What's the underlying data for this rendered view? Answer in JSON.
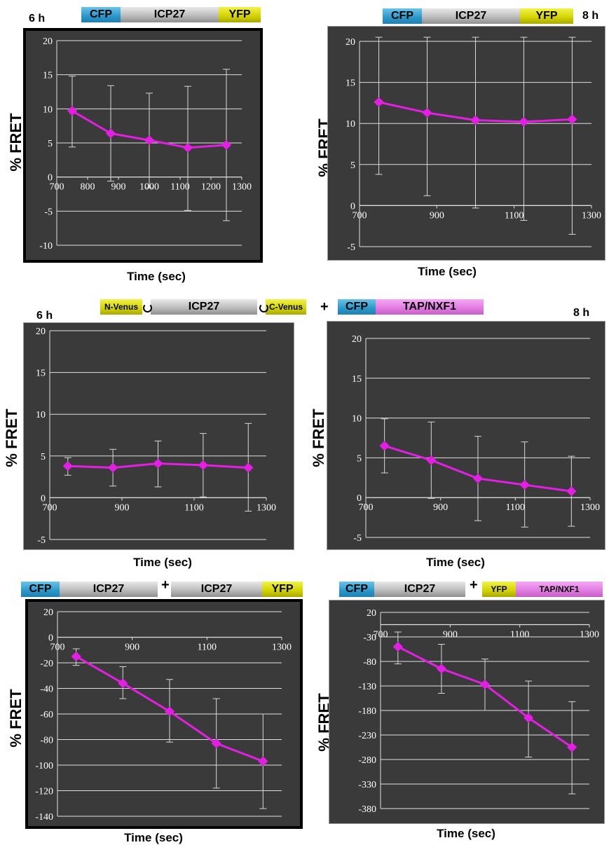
{
  "constructs": {
    "cfp": "CFP",
    "icp27": "ICP27",
    "yfp": "YFP",
    "n_venus": "N-Venus",
    "c_venus": "C-Venus",
    "tap": "TAP/NXF1",
    "plus": "+"
  },
  "colors": {
    "line": "#e21fe2",
    "panel": "#3a3a3a",
    "grid": "#e0e0e0",
    "cfp": "#2a97c9",
    "icp27": "#bdbdbd",
    "yfp": "#d2d200",
    "tap": "#e07ae0"
  },
  "time_labels": {
    "t6": "6 h",
    "t8": "8 h"
  },
  "chart_data": [
    {
      "type": "line",
      "id": "c1",
      "ylabel": "% FRET",
      "xlabel": "Time (sec)",
      "x_ticks": [
        700,
        800,
        900,
        1000,
        1100,
        1200,
        1300
      ],
      "y_ticks": [
        20,
        15,
        10,
        5,
        0,
        -5,
        -10
      ],
      "xlim": [
        700,
        1300
      ],
      "ylim": [
        -10,
        20
      ],
      "x_axis_at": 0,
      "grid": true,
      "series": [
        {
          "x": [
            750,
            875,
            1000,
            1125,
            1250
          ],
          "y": [
            9.7,
            6.4,
            5.4,
            4.3,
            4.7
          ],
          "err_low": [
            4.4,
            -0.6,
            -1.6,
            -4.9,
            -6.4
          ],
          "err_high": [
            14.8,
            13.4,
            12.3,
            13.3,
            15.8
          ]
        }
      ]
    },
    {
      "type": "line",
      "id": "c2",
      "ylabel": "% FRET",
      "xlabel": "Time (sec)",
      "x_ticks": [
        700,
        900,
        1100,
        1300
      ],
      "y_ticks": [
        20,
        15,
        10,
        5,
        0,
        -5
      ],
      "xlim": [
        700,
        1300
      ],
      "ylim": [
        -5,
        20
      ],
      "x_axis_at": 0,
      "grid": true,
      "series": [
        {
          "x": [
            750,
            875,
            1000,
            1125,
            1250
          ],
          "y": [
            12.6,
            11.3,
            10.4,
            10.2,
            10.5
          ],
          "err_low": [
            3.8,
            1.2,
            -0.3,
            -1.8,
            -3.5
          ],
          "err_high": [
            20.5,
            20.5,
            20.5,
            20.5,
            20.5
          ]
        }
      ]
    },
    {
      "type": "line",
      "id": "c3",
      "ylabel": "% FRET",
      "xlabel": "Time (sec)",
      "x_ticks": [
        700,
        900,
        1100,
        1300
      ],
      "y_ticks": [
        20,
        15,
        10,
        5,
        0,
        -5
      ],
      "xlim": [
        700,
        1300
      ],
      "ylim": [
        -5,
        20
      ],
      "x_axis_at": 0,
      "grid": true,
      "series": [
        {
          "x": [
            750,
            875,
            1000,
            1125,
            1250
          ],
          "y": [
            3.8,
            3.6,
            4.1,
            3.9,
            3.6
          ],
          "err_low": [
            2.7,
            1.4,
            1.3,
            0.1,
            -1.6
          ],
          "err_high": [
            4.8,
            5.8,
            6.8,
            7.7,
            8.9
          ]
        }
      ]
    },
    {
      "type": "line",
      "id": "c4",
      "ylabel": "% FRET",
      "xlabel": "Time (sec)",
      "x_ticks": [
        700,
        900,
        1100,
        1300
      ],
      "y_ticks": [
        20,
        15,
        10,
        5,
        0,
        -5
      ],
      "xlim": [
        700,
        1300
      ],
      "ylim": [
        -5,
        20
      ],
      "x_axis_at": 0,
      "grid": true,
      "series": [
        {
          "x": [
            750,
            875,
            1000,
            1125,
            1250
          ],
          "y": [
            6.5,
            4.7,
            2.4,
            1.6,
            0.8
          ],
          "err_low": [
            3.1,
            -0.1,
            -2.9,
            -3.7,
            -3.6
          ],
          "err_high": [
            9.9,
            9.5,
            7.7,
            7.0,
            5.2
          ]
        }
      ]
    },
    {
      "type": "line",
      "id": "c5",
      "ylabel": "% FRET",
      "xlabel": "Time (sec)",
      "x_ticks": [
        700,
        900,
        1100,
        1300
      ],
      "y_ticks": [
        20,
        0,
        -20,
        -40,
        -60,
        -80,
        -100,
        -120,
        -140
      ],
      "xlim": [
        700,
        1300
      ],
      "ylim": [
        -140,
        20
      ],
      "x_axis_at": 0,
      "grid": true,
      "series": [
        {
          "x": [
            750,
            875,
            1000,
            1125,
            1250
          ],
          "y": [
            -15,
            -36,
            -58,
            -83,
            -97
          ],
          "err_low": [
            -22,
            -48,
            -82,
            -118,
            -134
          ],
          "err_high": [
            -9,
            -23,
            -33,
            -48,
            -60
          ]
        }
      ]
    },
    {
      "type": "line",
      "id": "c6",
      "ylabel": "% FRET",
      "xlabel": "Time (sec)",
      "x_ticks": [
        700,
        900,
        1100,
        1300
      ],
      "y_ticks": [
        20,
        -30,
        -80,
        -130,
        -180,
        -230,
        -280,
        -330,
        -380
      ],
      "xlim": [
        700,
        1300
      ],
      "ylim": [
        -380,
        20
      ],
      "x_axis_at": -5,
      "grid": true,
      "series": [
        {
          "x": [
            750,
            875,
            1000,
            1125,
            1250
          ],
          "y": [
            -50,
            -95,
            -127,
            -195,
            -255
          ],
          "err_low": [
            -85,
            -145,
            -180,
            -275,
            -350
          ],
          "err_high": [
            -20,
            -45,
            -75,
            -120,
            -162
          ]
        }
      ]
    }
  ]
}
